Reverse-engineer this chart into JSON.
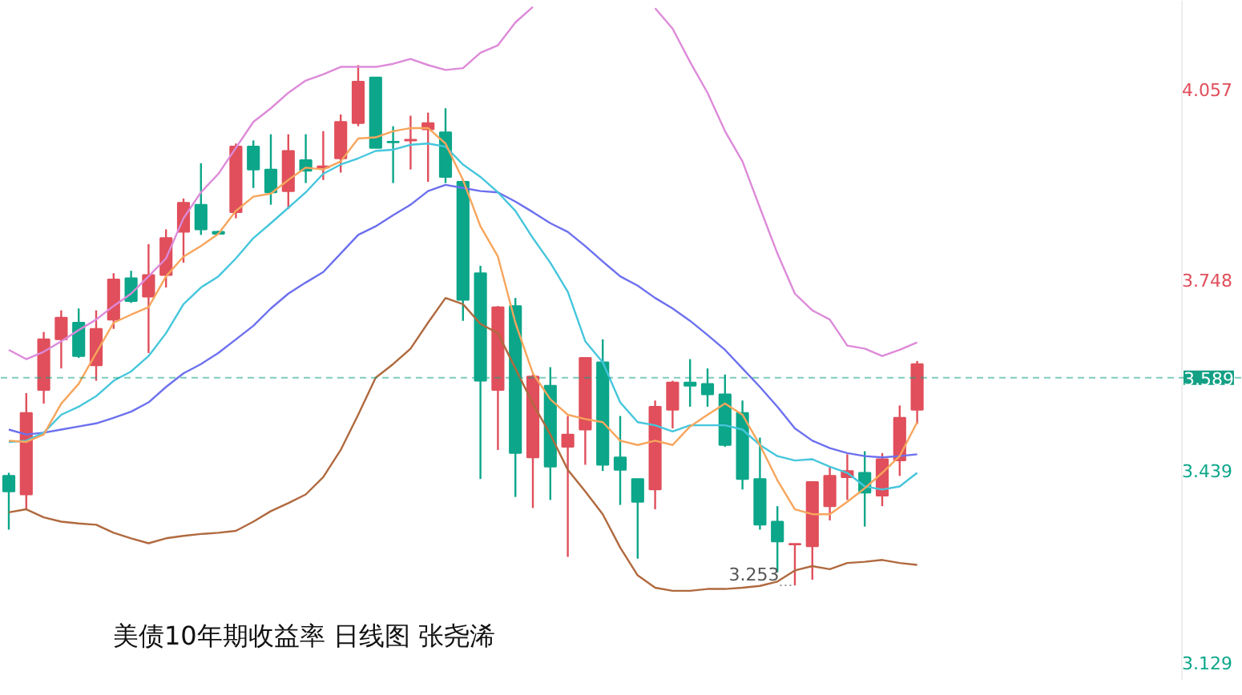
{
  "chart_data": {
    "type": "candlestick",
    "title": "美债10年期收益率 日线图 张尧浠",
    "categories": [
      null,
      null,
      null,
      null,
      null,
      null,
      null,
      null,
      null,
      null,
      null,
      null,
      null,
      null,
      null,
      null,
      null,
      null,
      null,
      null,
      null,
      null,
      null,
      null,
      null,
      null,
      null,
      null,
      null,
      null,
      null,
      null,
      null,
      null,
      null,
      null,
      null,
      null,
      null,
      null,
      null,
      null,
      null,
      null,
      null,
      null,
      null,
      null,
      null,
      null,
      null,
      null,
      null
    ],
    "ohlc": [
      [
        3.43,
        3.435,
        3.343,
        3.405
      ],
      [
        3.4,
        3.564,
        3.376,
        3.532
      ],
      [
        3.569,
        3.663,
        3.547,
        3.651
      ],
      [
        3.651,
        3.698,
        3.604,
        3.686
      ],
      [
        3.678,
        3.701,
        3.621,
        3.624
      ],
      [
        3.609,
        3.698,
        3.584,
        3.668
      ],
      [
        3.683,
        3.758,
        3.668,
        3.748
      ],
      [
        3.75,
        3.762,
        3.71,
        3.713
      ],
      [
        3.72,
        3.805,
        3.629,
        3.755
      ],
      [
        3.755,
        3.829,
        3.735,
        3.815
      ],
      [
        3.825,
        3.879,
        3.775,
        3.872
      ],
      [
        3.869,
        3.936,
        3.82,
        3.829
      ],
      [
        3.825,
        3.827,
        3.822,
        3.822
      ],
      [
        3.857,
        3.968,
        3.847,
        3.963
      ],
      [
        3.963,
        3.973,
        3.896,
        3.926
      ],
      [
        3.926,
        3.983,
        3.869,
        3.889
      ],
      [
        3.891,
        3.983,
        3.862,
        3.956
      ],
      [
        3.941,
        3.983,
        3.904,
        3.924
      ],
      [
        3.929,
        3.988,
        3.909,
        3.931
      ],
      [
        3.944,
        4.015,
        3.921,
        4.003
      ],
      [
        4.001,
        4.095,
        3.996,
        4.068
      ],
      [
        4.075,
        4.075,
        3.961,
        3.961
      ],
      [
        3.971,
        3.996,
        3.904,
        3.97
      ],
      [
        3.973,
        4.013,
        3.926,
        3.974
      ],
      [
        3.991,
        4.018,
        3.906,
        4.001
      ],
      [
        3.986,
        4.025,
        3.904,
        3.914
      ],
      [
        3.906,
        3.909,
        3.681,
        3.715
      ],
      [
        3.758,
        3.77,
        3.425,
        3.584
      ],
      [
        3.569,
        3.705,
        3.472,
        3.703
      ],
      [
        3.705,
        3.718,
        3.396,
        3.467
      ],
      [
        3.46,
        3.594,
        3.378,
        3.591
      ],
      [
        3.576,
        3.606,
        3.391,
        3.445
      ],
      [
        3.477,
        3.527,
        3.299,
        3.497
      ],
      [
        3.505,
        3.621,
        3.448,
        3.621
      ],
      [
        3.614,
        3.651,
        3.438,
        3.448
      ],
      [
        3.46,
        3.527,
        3.383,
        3.44
      ],
      [
        3.425,
        3.425,
        3.296,
        3.388
      ],
      [
        3.408,
        3.552,
        3.376,
        3.542
      ],
      [
        3.537,
        3.584,
        3.507,
        3.581
      ],
      [
        3.581,
        3.619,
        3.542,
        3.576
      ],
      [
        3.579,
        3.604,
        3.542,
        3.562
      ],
      [
        3.562,
        3.594,
        3.477,
        3.48
      ],
      [
        3.532,
        3.552,
        3.408,
        3.425
      ],
      [
        3.425,
        3.492,
        3.343,
        3.351
      ],
      [
        3.356,
        3.381,
        3.274,
        3.324
      ],
      [
        3.319,
        3.32,
        3.253,
        3.32
      ],
      [
        3.316,
        3.421,
        3.262,
        3.42
      ],
      [
        3.381,
        3.445,
        3.358,
        3.43
      ],
      [
        3.428,
        3.465,
        3.391,
        3.438
      ],
      [
        3.435,
        3.47,
        3.348,
        3.403
      ],
      [
        3.398,
        3.467,
        3.381,
        3.457
      ],
      [
        3.455,
        3.544,
        3.43,
        3.524
      ],
      [
        3.537,
        3.616,
        3.514,
        3.611
      ]
    ],
    "colors": [
      "#0ca68a",
      "#e04f5b",
      "#e04f5b",
      "#e04f5b",
      "#0ca68a",
      "#e04f5b",
      "#e04f5b",
      "#0ca68a",
      "#e04f5b",
      "#e04f5b",
      "#e04f5b",
      "#0ca68a",
      "#0ca68a",
      "#e04f5b",
      "#0ca68a",
      "#0ca68a",
      "#e04f5b",
      "#0ca68a",
      "#e04f5b",
      "#e04f5b",
      "#e04f5b",
      "#0ca68a",
      "#0ca68a",
      "#e04f5b",
      "#e04f5b",
      "#0ca68a",
      "#0ca68a",
      "#0ca68a",
      "#e04f5b",
      "#0ca68a",
      "#e04f5b",
      "#0ca68a",
      "#e04f5b",
      "#e04f5b",
      "#0ca68a",
      "#0ca68a",
      "#0ca68a",
      "#e04f5b",
      "#e04f5b",
      "#0ca68a",
      "#0ca68a",
      "#0ca68a",
      "#0ca68a",
      "#0ca68a",
      "#0ca68a",
      "#e04f5b",
      "#e04f5b",
      "#e04f5b",
      "#e04f5b",
      "#0ca68a",
      "#e04f5b",
      "#e04f5b",
      "#e04f5b"
    ],
    "series": [
      {
        "type": "line",
        "color": "#dd8ad9",
        "values": [
          3.634,
          3.619,
          3.631,
          3.648,
          3.666,
          3.683,
          3.705,
          3.725,
          3.753,
          3.782,
          3.847,
          3.889,
          3.919,
          3.961,
          4.003,
          4.025,
          4.05,
          4.07,
          4.08,
          4.092,
          4.092,
          4.092,
          4.097,
          4.105,
          4.095,
          4.087,
          4.09,
          4.115,
          4.127,
          4.164,
          4.189,
          null,
          null,
          null,
          null,
          null,
          null,
          4.187,
          4.154,
          4.1,
          4.05,
          3.988,
          3.939,
          3.864,
          3.79,
          3.725,
          3.698,
          3.683,
          3.641,
          3.636,
          3.624,
          3.634,
          3.646
        ]
      },
      {
        "type": "line",
        "color": "#6c70ee",
        "values": [
          3.505,
          3.497,
          3.5,
          3.505,
          3.51,
          3.515,
          3.524,
          3.534,
          3.549,
          3.574,
          3.596,
          3.611,
          3.629,
          3.651,
          3.673,
          3.701,
          3.725,
          3.743,
          3.76,
          3.79,
          3.82,
          3.834,
          3.852,
          3.869,
          3.891,
          3.901,
          3.896,
          3.891,
          3.889,
          3.874,
          3.857,
          3.839,
          3.825,
          3.802,
          3.777,
          3.753,
          3.738,
          3.718,
          3.701,
          3.681,
          3.658,
          3.634,
          3.604,
          3.574,
          3.542,
          3.507,
          3.487,
          3.475,
          3.467,
          3.462,
          3.46,
          3.462,
          3.465
        ]
      },
      {
        "type": "line",
        "color": "#45c6dc",
        "values": [
          3.485,
          3.487,
          3.5,
          3.529,
          3.542,
          3.559,
          3.584,
          3.599,
          3.624,
          3.661,
          3.708,
          3.735,
          3.753,
          3.782,
          3.815,
          3.839,
          3.864,
          3.889,
          3.919,
          3.934,
          3.944,
          3.956,
          3.958,
          3.966,
          3.968,
          3.963,
          3.934,
          3.914,
          3.889,
          3.859,
          3.815,
          3.775,
          3.728,
          3.648,
          3.614,
          3.549,
          3.517,
          3.512,
          3.502,
          3.512,
          3.512,
          3.512,
          3.505,
          3.48,
          3.462,
          3.455,
          3.457,
          3.445,
          3.435,
          3.413,
          3.408,
          3.413,
          3.435
        ]
      },
      {
        "type": "line",
        "color": "#f7a55c",
        "values": [
          3.487,
          3.485,
          3.497,
          3.547,
          3.579,
          3.629,
          3.678,
          3.691,
          3.703,
          3.753,
          3.785,
          3.802,
          3.822,
          3.859,
          3.882,
          3.887,
          3.909,
          3.929,
          3.926,
          3.939,
          3.976,
          3.978,
          3.988,
          3.993,
          3.993,
          3.968,
          3.909,
          3.834,
          3.785,
          3.678,
          3.596,
          3.554,
          3.529,
          3.522,
          3.517,
          3.487,
          3.48,
          3.487,
          3.48,
          3.51,
          3.529,
          3.547,
          3.529,
          3.48,
          3.423,
          3.376,
          3.368,
          3.368,
          3.388,
          3.41,
          3.435,
          3.462,
          3.517
        ]
      },
      {
        "type": "line",
        "color": "#b0693e",
        "values": [
          3.371,
          3.376,
          3.363,
          3.356,
          3.353,
          3.351,
          3.338,
          3.329,
          3.321,
          3.329,
          3.333,
          3.336,
          3.338,
          3.341,
          3.356,
          3.373,
          3.386,
          3.4,
          3.428,
          3.472,
          3.529,
          3.589,
          3.611,
          3.636,
          3.678,
          3.718,
          3.708,
          3.676,
          3.661,
          3.604,
          3.547,
          3.497,
          3.44,
          3.405,
          3.368,
          3.314,
          3.269,
          3.249,
          3.244,
          3.244,
          3.247,
          3.247,
          3.249,
          3.252,
          3.259,
          3.277,
          3.284,
          3.279,
          3.289,
          3.291,
          3.294,
          3.289,
          3.286
        ]
      }
    ],
    "ylim": [
      3.1,
      4.199
    ],
    "yticks": [
      4.057,
      3.748,
      3.439,
      3.129
    ],
    "tick_labels": "y",
    "ref_lines": [
      {
        "axis": "y",
        "value": 3.589,
        "label": "3.589",
        "color": "#14a085",
        "line_style": "dashed"
      }
    ],
    "annotations": [
      {
        "text": "3.253",
        "y": 3.253
      }
    ]
  }
}
